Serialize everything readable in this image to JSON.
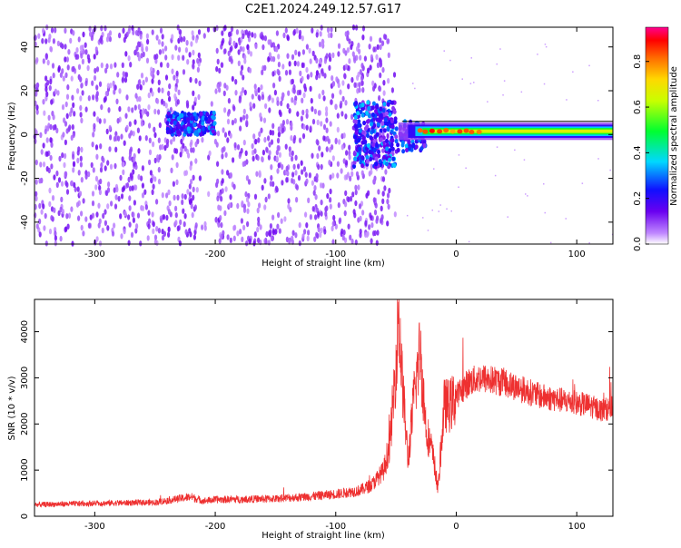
{
  "title": "C2E1.2024.249.12.57.G17",
  "colors": {
    "snr_line": "#ee3030",
    "spectro_low": "#8a3cf0",
    "axis": "#000000"
  },
  "chart_data": [
    {
      "type": "heatmap",
      "xlabel": "Height of straight line (km)",
      "ylabel": "Frequency (Hz)",
      "xlim": [
        -350,
        130
      ],
      "ylim": [
        -50,
        49
      ],
      "xticks": [
        -300,
        -200,
        -100,
        0,
        100
      ],
      "yticks": [
        -40,
        -20,
        0,
        20,
        40
      ],
      "grid": false,
      "colorbar": {
        "label": "Normalized spectral amplitude",
        "range": [
          0,
          0.95
        ],
        "ticks": [
          0.0,
          0.2,
          0.4,
          0.6,
          0.8
        ],
        "colormap": "rainbow (violet-blue-cyan-green-yellow-orange-red-magenta)"
      },
      "features": [
        {
          "x_range": [
            -350,
            -50
          ],
          "y_range": [
            -50,
            49
          ],
          "amplitude": 0.05
        },
        {
          "x_range": [
            -240,
            -200
          ],
          "y_range": [
            0,
            10
          ],
          "amplitude": 0.25
        },
        {
          "x_range": [
            -85,
            -50
          ],
          "y_range": [
            -15,
            15
          ],
          "amplitude": 0.3
        },
        {
          "x_range": [
            -50,
            130
          ],
          "y_center": 1.5,
          "amplitude": 0.6
        }
      ]
    },
    {
      "type": "line",
      "xlabel": "Height of straight line (km)",
      "ylabel": "SNR (10 * v/v)",
      "xlim": [
        -350,
        130
      ],
      "ylim": [
        0,
        4700
      ],
      "xticks": [
        -300,
        -200,
        -100,
        0,
        100
      ],
      "yticks": [
        0,
        1000,
        2000,
        3000,
        4000
      ],
      "grid": false,
      "series": [
        {
          "x": [
            -350,
            -300,
            -250,
            -220,
            -210,
            -200,
            -150,
            -120,
            -100,
            -80,
            -70,
            -60,
            -55,
            -50,
            -48,
            -45,
            -40,
            -35,
            -30,
            -25,
            -20,
            -15,
            -10,
            -5,
            0,
            10,
            20,
            30,
            40,
            50,
            60,
            70,
            80,
            90,
            100,
            110,
            120,
            130
          ],
          "y": [
            250,
            280,
            300,
            420,
            330,
            360,
            380,
            430,
            480,
            560,
            680,
            1000,
            1600,
            3300,
            4500,
            3000,
            1200,
            2600,
            3600,
            1900,
            1400,
            600,
            2400,
            2400,
            2600,
            2900,
            3000,
            2950,
            2900,
            2800,
            2700,
            2600,
            2550,
            2500,
            2450,
            2400,
            2300,
            2350
          ]
        }
      ]
    }
  ]
}
